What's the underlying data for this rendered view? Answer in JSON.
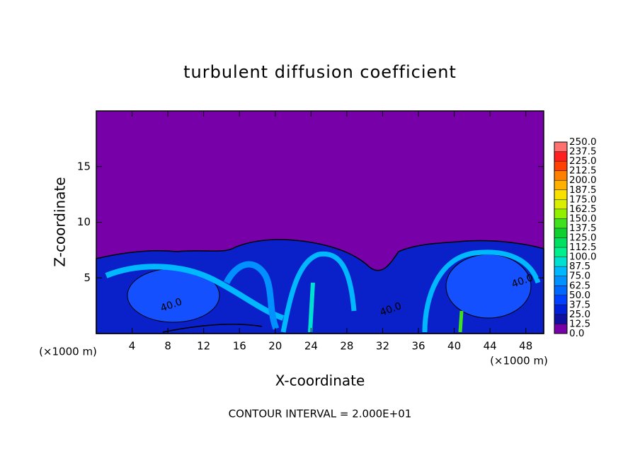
{
  "chart_data": {
    "type": "contour",
    "title": "turbulent diffusion coefficient",
    "x_label": "X-coordinate",
    "y_label": "Z-coordinate",
    "x_unit": "(×1000 m)",
    "y_unit": "(×1000 m)",
    "xlim": [
      0,
      50
    ],
    "ylim": [
      0,
      20
    ],
    "xticks": [
      4,
      8,
      12,
      16,
      20,
      24,
      28,
      32,
      36,
      40,
      44,
      48
    ],
    "yticks": [
      5,
      10,
      15
    ],
    "note": "CONTOUR INTERVAL = 2.000E+01",
    "contour_labels": [
      "40.0",
      "40.0",
      "40.0"
    ],
    "colorbar": {
      "lim": [
        0,
        250
      ],
      "ticks": [
        {
          "value": 0,
          "label": "0.0"
        },
        {
          "value": 12.5,
          "label": "12.5"
        },
        {
          "value": 25,
          "label": "25.0"
        },
        {
          "value": 37.5,
          "label": "37.5"
        },
        {
          "value": 50,
          "label": "50.0"
        },
        {
          "value": 62.5,
          "label": "62.5"
        },
        {
          "value": 75,
          "label": "75.0"
        },
        {
          "value": 87.5,
          "label": "87.5"
        },
        {
          "value": 100,
          "label": "100.0"
        },
        {
          "value": 112.5,
          "label": "112.5"
        },
        {
          "value": 125,
          "label": "125.0"
        },
        {
          "value": 137.5,
          "label": "137.5"
        },
        {
          "value": 150,
          "label": "150.0"
        },
        {
          "value": 162.5,
          "label": "162.5"
        },
        {
          "value": 175,
          "label": "175.0"
        },
        {
          "value": 187.5,
          "label": "187.5"
        },
        {
          "value": 200,
          "label": "200.0"
        },
        {
          "value": 212.5,
          "label": "212.5"
        },
        {
          "value": 225,
          "label": "225.0"
        },
        {
          "value": 237.5,
          "label": "237.5"
        },
        {
          "value": 250,
          "label": "250.0"
        }
      ],
      "colors": [
        "#7800a8",
        "#1010a0",
        "#0020d8",
        "#0040ff",
        "#0068ff",
        "#0090ff",
        "#00b8ff",
        "#00e0d0",
        "#00f090",
        "#00e060",
        "#10d030",
        "#40e020",
        "#90f000",
        "#d8f000",
        "#f8e000",
        "#ffb000",
        "#ff8000",
        "#ff4000",
        "#ff2020",
        "#ff7070"
      ]
    }
  }
}
